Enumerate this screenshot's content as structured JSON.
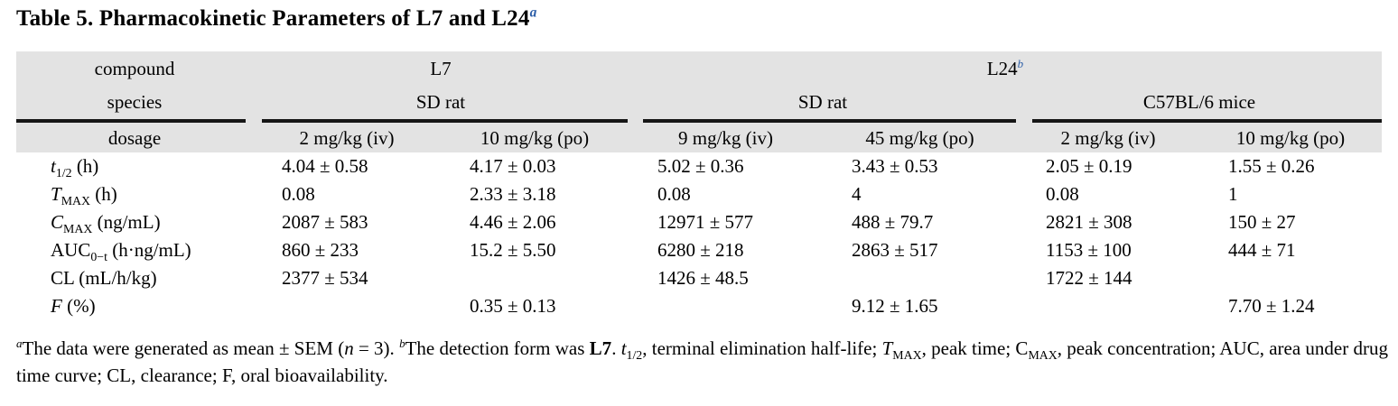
{
  "colors": {
    "accent_blue": "#2d5fa8",
    "header_bg": "#e3e3e3",
    "rule": "#161616",
    "text": "#000000"
  },
  "title": [
    {
      "t": "Table 5. Pharmacokinetic Parameters of L7 and L24"
    },
    {
      "t": "a",
      "s": "sup i blue"
    }
  ],
  "table": {
    "compound_label": "compound",
    "species_label": "species",
    "dosage_label": "dosage",
    "compounds": [
      [
        {
          "t": "L7"
        }
      ],
      [
        {
          "t": "L24"
        },
        {
          "t": "b",
          "s": "sup i blue"
        }
      ]
    ],
    "species_groups": [
      {
        "label": "SD rat"
      },
      {
        "label": "SD rat"
      },
      {
        "label": "C57BL/6 mice"
      }
    ],
    "dosages": [
      "2 mg/kg (iv)",
      "10 mg/kg (po)",
      "9 mg/kg (iv)",
      "45 mg/kg (po)",
      "2 mg/kg (iv)",
      "10 mg/kg (po)"
    ],
    "rows": [
      {
        "label": [
          {
            "t": "t",
            "s": "i"
          },
          {
            "t": "1/2",
            "s": "sub"
          },
          {
            "t": " (h)"
          }
        ],
        "values": [
          "4.04 ± 0.58",
          "4.17 ± 0.03",
          "5.02 ± 0.36",
          "3.43 ± 0.53",
          "2.05 ± 0.19",
          "1.55 ± 0.26"
        ]
      },
      {
        "label": [
          {
            "t": "T",
            "s": "i"
          },
          {
            "t": "MAX",
            "s": "sub"
          },
          {
            "t": " (h)"
          }
        ],
        "values": [
          "0.08",
          "2.33 ± 3.18",
          "0.08",
          "4",
          "0.08",
          "1"
        ]
      },
      {
        "label": [
          {
            "t": "C",
            "s": "i"
          },
          {
            "t": "MAX",
            "s": "sub"
          },
          {
            "t": " (ng/mL)"
          }
        ],
        "values": [
          "2087 ± 583",
          "4.46 ± 2.06",
          "12971 ± 577",
          "488 ± 79.7",
          "2821 ± 308",
          "150 ± 27"
        ]
      },
      {
        "label": [
          {
            "t": "AUC"
          },
          {
            "t": "0−t",
            "s": "sub"
          },
          {
            "t": " (h·ng/mL)"
          }
        ],
        "values": [
          "860 ± 233",
          "15.2 ± 5.50",
          "6280 ± 218",
          "2863 ± 517",
          "1153 ± 100",
          "444 ± 71"
        ]
      },
      {
        "label": [
          {
            "t": "CL (mL/h/kg)"
          }
        ],
        "values": [
          "2377 ± 534",
          "",
          "1426 ± 48.5",
          "",
          "1722 ± 144",
          ""
        ]
      },
      {
        "label": [
          {
            "t": "F",
            "s": "i"
          },
          {
            "t": " (%)"
          }
        ],
        "values": [
          "",
          "0.35 ± 0.13",
          "",
          "9.12 ± 1.65",
          "",
          "7.70 ± 1.24"
        ]
      }
    ]
  },
  "footnote": [
    {
      "t": "a",
      "s": "sup i"
    },
    {
      "t": "The data were generated as mean ± SEM ("
    },
    {
      "t": "n",
      "s": "i"
    },
    {
      "t": " = 3). "
    },
    {
      "t": "b",
      "s": "sup i"
    },
    {
      "t": "The detection form was "
    },
    {
      "t": "L7",
      "s": "b"
    },
    {
      "t": ". "
    },
    {
      "t": "t",
      "s": "i"
    },
    {
      "t": "1/2",
      "s": "sub"
    },
    {
      "t": ", terminal elimination half-life; "
    },
    {
      "t": "T",
      "s": "i"
    },
    {
      "t": "MAX",
      "s": "sub"
    },
    {
      "t": ", peak time; C"
    },
    {
      "t": "MAX",
      "s": "sub"
    },
    {
      "t": ", peak concentration; AUC, area under drug time curve; CL, clearance; F, oral bioavailability."
    }
  ]
}
